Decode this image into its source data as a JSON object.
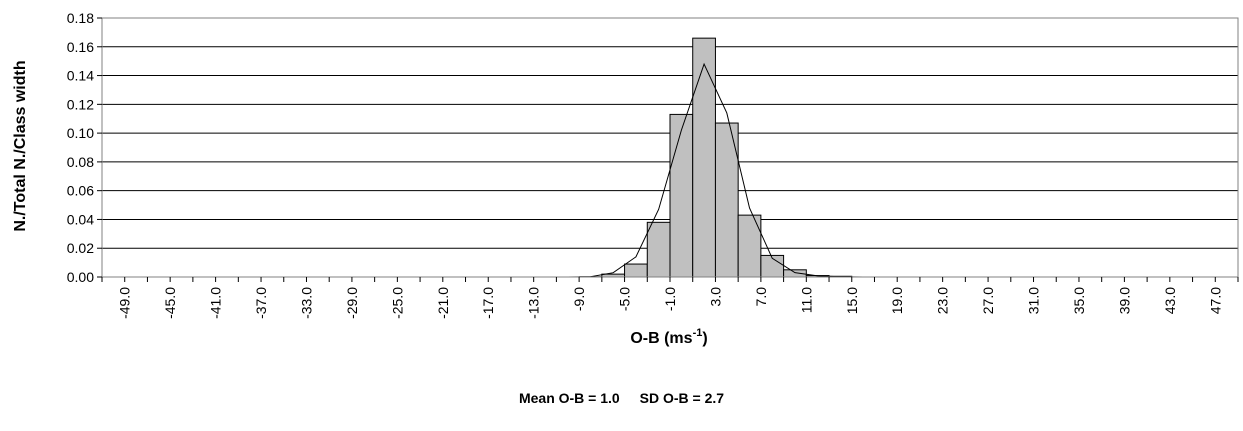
{
  "chart_data": {
    "type": "bar",
    "ylabel": "N./Total N./Class width",
    "xlabel_main": "O-B (ms",
    "xlabel_sup": "-1",
    "xlabel_end": ")",
    "ylim": [
      0,
      0.18
    ],
    "yticks": [
      "0.00",
      "0.02",
      "0.04",
      "0.06",
      "0.08",
      "0.10",
      "0.12",
      "0.14",
      "0.16",
      "0.18"
    ],
    "xtick_labels": [
      "-49.0",
      "-45.0",
      "-41.0",
      "-37.0",
      "-33.0",
      "-29.0",
      "-25.0",
      "-21.0",
      "-17.0",
      "-13.0",
      "-9.0",
      "-5.0",
      "-1.0",
      "3.0",
      "7.0",
      "11.0",
      "15.0",
      "19.0",
      "23.0",
      "27.0",
      "31.0",
      "35.0",
      "39.0",
      "43.0",
      "47.0"
    ],
    "bins": [
      -51,
      -49,
      -47,
      -45,
      -43,
      -41,
      -39,
      -37,
      -35,
      -33,
      -31,
      -29,
      -27,
      -25,
      -23,
      -21,
      -19,
      -17,
      -15,
      -13,
      -11,
      -9,
      -7,
      -5,
      -3,
      -1,
      1,
      3,
      5,
      7,
      9,
      11,
      13,
      15,
      17,
      19,
      21,
      23,
      25,
      27,
      29,
      31,
      33,
      35,
      37,
      39,
      41,
      43,
      45,
      47,
      49
    ],
    "values": [
      0,
      0,
      0,
      0,
      0,
      0,
      0,
      0,
      0,
      0,
      0,
      0,
      0,
      0,
      0,
      0,
      0,
      0,
      0,
      0,
      0,
      0.0003,
      0.002,
      0.009,
      0.038,
      0.113,
      0.166,
      0.107,
      0.043,
      0.015,
      0.005,
      0.001,
      0.0005,
      0,
      0,
      0,
      0,
      0,
      0,
      0,
      0,
      0,
      0,
      0,
      0,
      0,
      0,
      0,
      0,
      0,
      0
    ],
    "fit_curve": [
      0,
      0,
      0,
      0,
      0,
      0,
      0,
      0,
      0,
      0,
      0,
      0,
      0,
      0,
      0,
      0,
      0,
      0,
      0,
      0,
      0,
      0.0002,
      0.003,
      0.014,
      0.047,
      0.102,
      0.148,
      0.114,
      0.048,
      0.013,
      0.003,
      0.0008,
      0.0002,
      0,
      0,
      0,
      0,
      0,
      0,
      0,
      0,
      0,
      0,
      0,
      0,
      0,
      0,
      0,
      0,
      0,
      0
    ],
    "grid": true,
    "bar_color": "#c0c0c0"
  },
  "footer": {
    "mean": "Mean O-B = 1.0",
    "sd": "SD O-B = 2.7"
  }
}
